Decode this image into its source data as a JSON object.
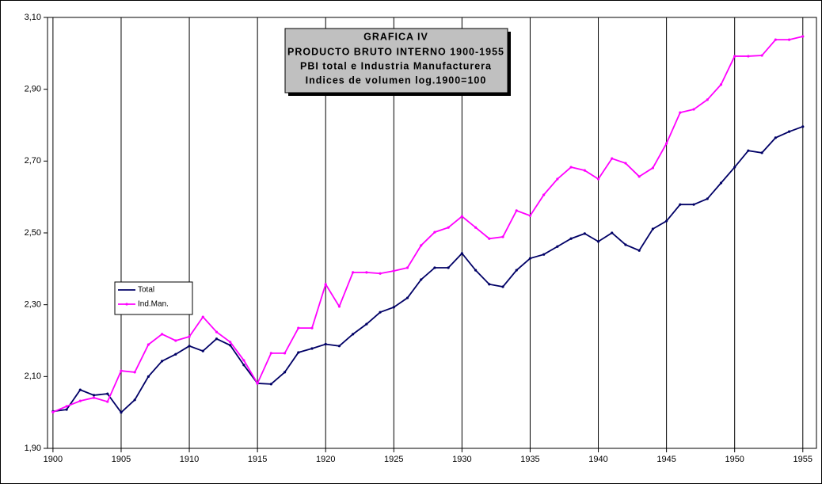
{
  "chart_data": {
    "type": "line",
    "title": "GRAFICA IV",
    "subtitle": [
      "PRODUCTO BRUTO INTERNO 1900-1955",
      "PBI total e Industria Manufacturera",
      "Indices de volumen log.1900=100"
    ],
    "x": [
      1900,
      1901,
      1902,
      1903,
      1904,
      1905,
      1906,
      1907,
      1908,
      1909,
      1910,
      1911,
      1912,
      1913,
      1914,
      1915,
      1916,
      1917,
      1918,
      1919,
      1920,
      1921,
      1922,
      1923,
      1924,
      1925,
      1926,
      1927,
      1928,
      1929,
      1930,
      1931,
      1932,
      1933,
      1934,
      1935,
      1936,
      1937,
      1938,
      1939,
      1940,
      1941,
      1942,
      1943,
      1944,
      1945,
      1946,
      1947,
      1948,
      1949,
      1950,
      1951,
      1952,
      1953,
      1954,
      1955
    ],
    "series": [
      {
        "name": "Total",
        "color": "#000066",
        "values": [
          2.003,
          2.008,
          2.063,
          2.048,
          2.052,
          2.0,
          2.035,
          2.1,
          2.143,
          2.162,
          2.185,
          2.171,
          2.205,
          2.187,
          2.132,
          2.081,
          2.079,
          2.112,
          2.167,
          2.178,
          2.19,
          2.185,
          2.218,
          2.246,
          2.279,
          2.293,
          2.319,
          2.37,
          2.403,
          2.403,
          2.443,
          2.396,
          2.357,
          2.35,
          2.396,
          2.429,
          2.44,
          2.462,
          2.484,
          2.498,
          2.476,
          2.5,
          2.467,
          2.451,
          2.511,
          2.533,
          2.579,
          2.579,
          2.595,
          2.639,
          2.683,
          2.729,
          2.723,
          2.765,
          2.782,
          2.796
        ]
      },
      {
        "name": "Ind.Man.",
        "color": "#ff00ff",
        "values": [
          2.001,
          2.017,
          2.032,
          2.041,
          2.03,
          2.116,
          2.112,
          2.189,
          2.218,
          2.2,
          2.211,
          2.266,
          2.224,
          2.196,
          2.145,
          2.081,
          2.165,
          2.165,
          2.235,
          2.235,
          2.357,
          2.295,
          2.39,
          2.39,
          2.387,
          2.394,
          2.403,
          2.465,
          2.502,
          2.515,
          2.546,
          2.515,
          2.484,
          2.489,
          2.562,
          2.548,
          2.606,
          2.65,
          2.683,
          2.674,
          2.65,
          2.707,
          2.694,
          2.657,
          2.681,
          2.749,
          2.835,
          2.844,
          2.871,
          2.913,
          2.992,
          2.992,
          2.994,
          3.038,
          3.038,
          3.047
        ]
      }
    ],
    "xlim": [
      1899.6,
      1956
    ],
    "xticks": [
      1900,
      1905,
      1910,
      1915,
      1920,
      1925,
      1930,
      1935,
      1940,
      1945,
      1950,
      1955
    ],
    "ylim": [
      1.9,
      3.1
    ],
    "yticks": [
      {
        "value": 1.9,
        "label": "1,90"
      },
      {
        "value": 2.1,
        "label": "2,10"
      },
      {
        "value": 2.3,
        "label": "2,30"
      },
      {
        "value": 2.5,
        "label": "2,50"
      },
      {
        "value": 2.7,
        "label": "2,70"
      },
      {
        "value": 2.9,
        "label": "2,90"
      },
      {
        "value": 3.1,
        "label": "3,10"
      }
    ],
    "xgrid": true
  }
}
